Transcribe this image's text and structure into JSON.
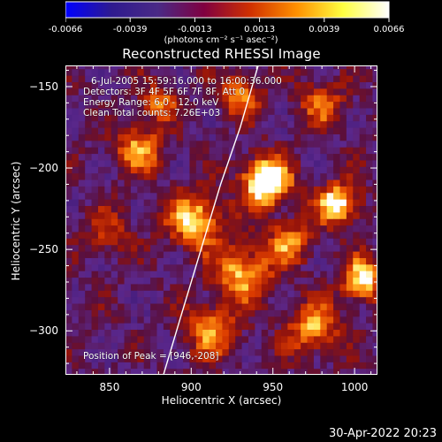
{
  "colorbar": {
    "ticks": [
      "-0.0066",
      "-0.0039",
      "-0.0013",
      "0.0013",
      "0.0039",
      "0.0066"
    ],
    "units_label": "(photons cm⁻² s⁻¹ asec⁻²)",
    "colors": [
      "#0000ff",
      "#2e1a8f",
      "#4a2a86",
      "#800040",
      "#d03000",
      "#ff9000",
      "#ffff40",
      "#ffffff"
    ]
  },
  "chart_data": {
    "type": "heatmap",
    "title": "Reconstructed RHESSI Image",
    "xlabel": "Heliocentric X (arcsec)",
    "ylabel": "Heliocentric Y (arcsec)",
    "xlim": [
      823,
      1014
    ],
    "ylim": [
      -327,
      -137
    ],
    "xticks": [
      850,
      900,
      950,
      1000
    ],
    "yticks": [
      -150,
      -200,
      -250,
      -300
    ],
    "colorbar_range": [
      -0.0066,
      0.0066
    ],
    "peak": [
      946,
      -208
    ],
    "sources": [
      {
        "x": 946,
        "y": -208,
        "intensity": 1.0,
        "width": 10
      },
      {
        "x": 990,
        "y": -222,
        "intensity": 0.75,
        "width": 9
      },
      {
        "x": 903,
        "y": -232,
        "intensity": 0.65,
        "width": 12
      },
      {
        "x": 932,
        "y": -264,
        "intensity": 0.6,
        "width": 12
      },
      {
        "x": 1005,
        "y": -268,
        "intensity": 0.7,
        "width": 9
      },
      {
        "x": 868,
        "y": -188,
        "intensity": 0.55,
        "width": 10
      },
      {
        "x": 930,
        "y": -155,
        "intensity": 0.5,
        "width": 9
      },
      {
        "x": 975,
        "y": -298,
        "intensity": 0.55,
        "width": 11
      },
      {
        "x": 912,
        "y": -300,
        "intensity": 0.5,
        "width": 11
      },
      {
        "x": 980,
        "y": -160,
        "intensity": 0.4,
        "width": 10
      },
      {
        "x": 850,
        "y": -240,
        "intensity": 0.3,
        "width": 10
      },
      {
        "x": 960,
        "y": -245,
        "intensity": 0.5,
        "width": 9
      },
      {
        "x": 880,
        "y": -160,
        "intensity": 0.45,
        "width": 8
      }
    ],
    "limb_curve": [
      {
        "x": 941,
        "y": -137
      },
      {
        "x": 930,
        "y": -175
      },
      {
        "x": 918,
        "y": -210
      },
      {
        "x": 906,
        "y": -250
      },
      {
        "x": 894,
        "y": -290
      },
      {
        "x": 883,
        "y": -327
      }
    ],
    "annotations": {
      "time": "6-Jul-2005 15:59:16.000 to 16:00:36.000",
      "detectors": "Detectors: 3F 4F 5F 6F 7F 8F, Att 0",
      "energy": "Energy Range: 6.0 - 12.0 keV",
      "clean": "Clean    Total counts: 7.26E+03",
      "peak": "Position of Peak = [946,-208]"
    },
    "grid": false
  },
  "timestamp": "30-Apr-2022 20:23"
}
